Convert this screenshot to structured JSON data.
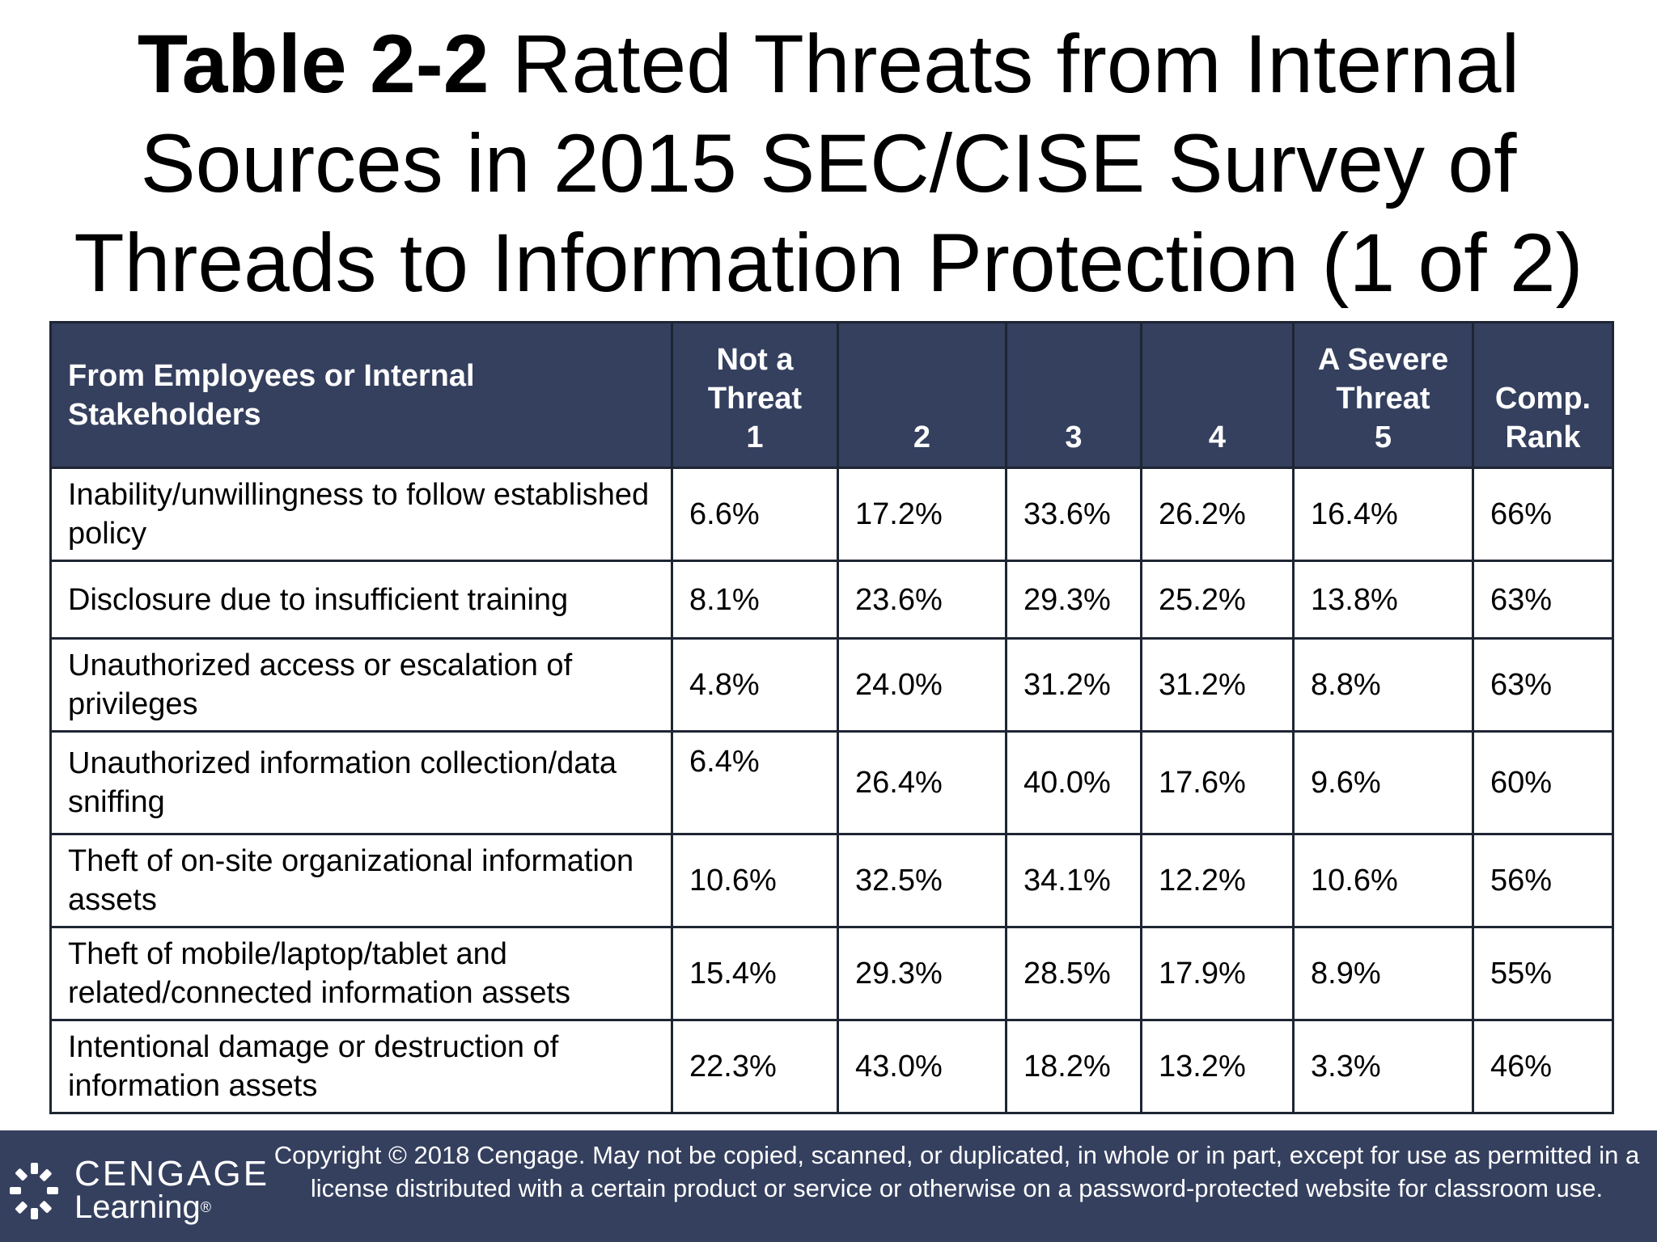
{
  "title": {
    "bold": "Table 2-2",
    "rest": " Rated Threats from Internal Sources in 2015 SEC/CISE Survey of Threads to Information Protection (1 of 2)"
  },
  "table": {
    "header": {
      "stakeholders": "From Employees or Internal Stakeholders",
      "col1_line1": "Not a",
      "col1_line2": "Threat",
      "col1_line3": "1",
      "col2": "2",
      "col3": "3",
      "col4": "4",
      "col5_line1": "A Severe",
      "col5_line2": "Threat",
      "col5_line3": "5",
      "rank_line1": "Comp.",
      "rank_line2": "Rank"
    },
    "rows": [
      {
        "label": "Inability/unwillingness to follow established policy",
        "c1": "6.6%",
        "c2": "17.2%",
        "c3": "33.6%",
        "c4": "26.2%",
        "c5": "16.4%",
        "rank": "66%"
      },
      {
        "label": "Disclosure due to insufficient training",
        "c1": "8.1%",
        "c2": "23.6%",
        "c3": "29.3%",
        "c4": "25.2%",
        "c5": "13.8%",
        "rank": "63%"
      },
      {
        "label": "Unauthorized access or escalation of privileges",
        "c1": "4.8%",
        "c2": "24.0%",
        "c3": "31.2%",
        "c4": "31.2%",
        "c5": "8.8%",
        "rank": "63%"
      },
      {
        "label": "Unauthorized information collection/data sniffing",
        "c1": "6.4%",
        "c2": "26.4%",
        "c3": "40.0%",
        "c4": "17.6%",
        "c5": "9.6%",
        "rank": "60%"
      },
      {
        "label": "Theft of on-site organizational information assets",
        "c1": "10.6%",
        "c2": "32.5%",
        "c3": "34.1%",
        "c4": "12.2%",
        "c5": "10.6%",
        "rank": "56%"
      },
      {
        "label": "Theft of mobile/laptop/tablet and related/connected information assets",
        "c1": "15.4%",
        "c2": "29.3%",
        "c3": "28.5%",
        "c4": "17.9%",
        "c5": "8.9%",
        "rank": "55%"
      },
      {
        "label": "Intentional damage or destruction of information assets",
        "c1": "22.3%",
        "c2": "43.0%",
        "c3": "18.2%",
        "c4": "13.2%",
        "c5": "3.3%",
        "rank": "46%"
      }
    ]
  },
  "footer": {
    "logo_line1": "CENGAGE",
    "logo_line2": "Learning",
    "logo_mark": "®",
    "copyright": "Copyright © 2018 Cengage. May not be copied, scanned, or duplicated, in whole or in part, except for use as permitted in a license distributed with a certain product or service or otherwise on a password-protected website for classroom use."
  },
  "colors": {
    "header_bg": "#35405f",
    "footer_bg": "#35405f",
    "border": "#1e2533"
  }
}
